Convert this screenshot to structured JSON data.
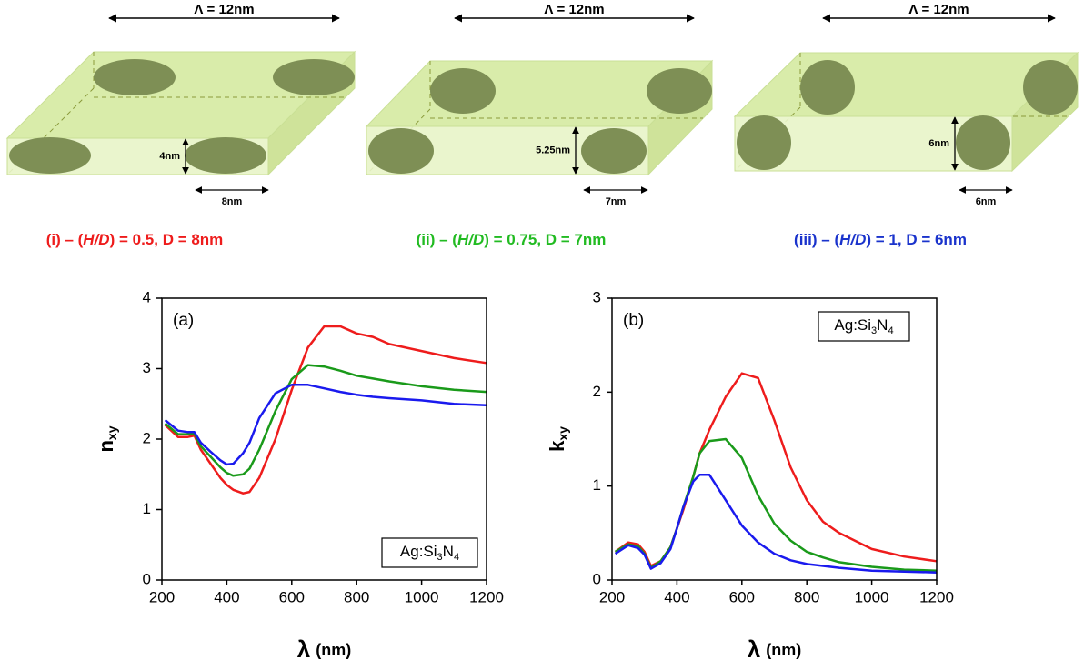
{
  "diagrams": [
    {
      "period": "Λ = 12nm",
      "height": "4nm",
      "diameter": "8nm",
      "caption": {
        "start": "(i) – (",
        "ratio": "H/D",
        "end": ") = 0.5, D = 8nm"
      },
      "color": "#ee1c1c"
    },
    {
      "period": "Λ = 12nm",
      "height": "5.25nm",
      "diameter": "7nm",
      "caption": {
        "start": "(ii) – (",
        "ratio": "H/D",
        "end": ") = 0.75, D = 7nm"
      },
      "color": "#22bb22"
    },
    {
      "period": "Λ = 12nm",
      "height": "6nm",
      "diameter": "6nm",
      "caption": {
        "start": "(iii) – (",
        "ratio": "H/D",
        "end": ") = 1, D = 6nm"
      },
      "color": "#1a33cc"
    }
  ],
  "chart_data": [
    {
      "type": "line",
      "panel": "(a)",
      "material": {
        "a": "Ag:Si",
        "b": "3",
        "c": "N",
        "d": "4"
      },
      "y_label": {
        "symbol": "n",
        "sub": "xy"
      },
      "x_label": {
        "symbol": "λ",
        "unit": "(nm)"
      },
      "xlim": [
        200,
        1200
      ],
      "xticks": [
        200,
        400,
        600,
        800,
        1000,
        1200
      ],
      "ylim": [
        0,
        4
      ],
      "yticks": [
        0,
        1,
        2,
        3,
        4
      ],
      "x": [
        210,
        250,
        280,
        300,
        320,
        350,
        380,
        400,
        420,
        450,
        470,
        500,
        550,
        600,
        650,
        700,
        750,
        800,
        850,
        900,
        1000,
        1100,
        1200
      ],
      "series": [
        {
          "color": "#ee1c1c",
          "values": [
            2.2,
            2.03,
            2.03,
            2.05,
            1.85,
            1.65,
            1.45,
            1.35,
            1.28,
            1.23,
            1.25,
            1.45,
            2.0,
            2.7,
            3.3,
            3.6,
            3.6,
            3.5,
            3.45,
            3.35,
            3.25,
            3.15,
            3.08
          ]
        },
        {
          "color": "#1a9a1a",
          "values": [
            2.22,
            2.07,
            2.07,
            2.08,
            1.9,
            1.75,
            1.6,
            1.52,
            1.48,
            1.5,
            1.58,
            1.85,
            2.4,
            2.85,
            3.05,
            3.03,
            2.97,
            2.9,
            2.86,
            2.82,
            2.75,
            2.7,
            2.67
          ]
        },
        {
          "color": "#1a1aee",
          "values": [
            2.27,
            2.12,
            2.1,
            2.1,
            1.95,
            1.82,
            1.7,
            1.64,
            1.65,
            1.8,
            1.95,
            2.3,
            2.65,
            2.77,
            2.77,
            2.72,
            2.67,
            2.63,
            2.6,
            2.58,
            2.55,
            2.5,
            2.48
          ]
        }
      ]
    },
    {
      "type": "line",
      "panel": "(b)",
      "material": {
        "a": "Ag:Si",
        "b": "3",
        "c": "N",
        "d": "4"
      },
      "y_label": {
        "symbol": "k",
        "sub": "xy"
      },
      "x_label": {
        "symbol": "λ",
        "unit": "(nm)"
      },
      "xlim": [
        200,
        1200
      ],
      "xticks": [
        200,
        400,
        600,
        800,
        1000,
        1200
      ],
      "ylim": [
        0,
        3
      ],
      "yticks": [
        0,
        1,
        2,
        3
      ],
      "x": [
        210,
        250,
        280,
        300,
        320,
        350,
        380,
        400,
        420,
        450,
        470,
        500,
        550,
        600,
        650,
        700,
        750,
        800,
        850,
        900,
        1000,
        1100,
        1200
      ],
      "series": [
        {
          "color": "#ee1c1c",
          "values": [
            0.3,
            0.4,
            0.38,
            0.3,
            0.15,
            0.2,
            0.35,
            0.55,
            0.75,
            1.1,
            1.35,
            1.6,
            1.95,
            2.2,
            2.15,
            1.7,
            1.2,
            0.85,
            0.62,
            0.5,
            0.33,
            0.25,
            0.2
          ]
        },
        {
          "color": "#1a9a1a",
          "values": [
            0.3,
            0.38,
            0.36,
            0.28,
            0.13,
            0.2,
            0.35,
            0.55,
            0.78,
            1.1,
            1.35,
            1.48,
            1.5,
            1.3,
            0.9,
            0.6,
            0.42,
            0.3,
            0.24,
            0.19,
            0.14,
            0.11,
            0.1
          ]
        },
        {
          "color": "#1a1aee",
          "values": [
            0.28,
            0.37,
            0.34,
            0.27,
            0.12,
            0.18,
            0.33,
            0.55,
            0.78,
            1.05,
            1.12,
            1.12,
            0.85,
            0.58,
            0.4,
            0.28,
            0.21,
            0.17,
            0.15,
            0.13,
            0.1,
            0.09,
            0.08
          ]
        }
      ]
    }
  ]
}
